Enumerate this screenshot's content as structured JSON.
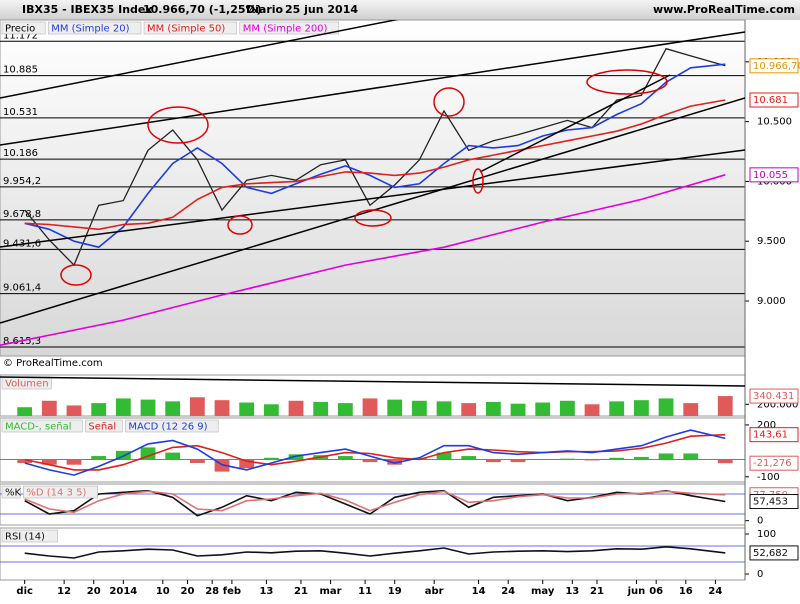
{
  "chart_data": [
    {
      "type": "line",
      "title": "IBX35 - IBEX35 Index",
      "subtitle": "10.966,70 (-1,25%)",
      "period": "Diario",
      "date": "25 jun 2014",
      "source": "www.ProRealTime.com",
      "copyright": "© ProRealTime.com",
      "x": [
        0,
        5,
        10,
        15,
        20,
        25,
        30,
        35,
        40,
        45,
        50,
        55,
        60,
        65,
        70,
        75,
        80,
        85,
        90,
        95,
        100,
        105,
        110,
        115,
        120,
        125,
        130,
        135,
        142
      ],
      "xlim": [
        -5,
        146
      ],
      "xticks": [
        {
          "value": 0,
          "label": "dic"
        },
        {
          "value": 8,
          "label": "12"
        },
        {
          "value": 14,
          "label": "20"
        },
        {
          "value": 20,
          "label": "2014"
        },
        {
          "value": 28,
          "label": "10"
        },
        {
          "value": 33,
          "label": "20"
        },
        {
          "value": 38,
          "label": "28"
        },
        {
          "value": 42,
          "label": "feb"
        },
        {
          "value": 49,
          "label": "13"
        },
        {
          "value": 56,
          "label": "21"
        },
        {
          "value": 62,
          "label": "mar"
        },
        {
          "value": 69,
          "label": "11"
        },
        {
          "value": 75,
          "label": "19"
        },
        {
          "value": 83,
          "label": "abr"
        },
        {
          "value": 92,
          "label": "14"
        },
        {
          "value": 98,
          "label": "24"
        },
        {
          "value": 105,
          "label": "may"
        },
        {
          "value": 111,
          "label": "13"
        },
        {
          "value": 116,
          "label": "21"
        },
        {
          "value": 124,
          "label": "jun"
        },
        {
          "value": 128,
          "label": "06"
        },
        {
          "value": 134,
          "label": "16"
        },
        {
          "value": 140,
          "label": "24"
        }
      ],
      "ylim": [
        8540,
        11350
      ],
      "yticks": [
        {
          "value": 9000,
          "label": "9.000"
        },
        {
          "value": 9500,
          "label": "9.500"
        },
        {
          "value": 10000,
          "label": "10.000"
        },
        {
          "value": 10500,
          "label": "10.500"
        },
        {
          "value": 11000,
          "label": "11.000"
        }
      ],
      "level_lines": [
        {
          "value": 11172,
          "label": "11.172"
        },
        {
          "value": 10885,
          "label": "10.885"
        },
        {
          "value": 10531,
          "label": "10.531"
        },
        {
          "value": 10186,
          "label": "10.186"
        },
        {
          "value": 9954.2,
          "label": "9.954,2"
        },
        {
          "value": 9678.8,
          "label": "9.678,8"
        },
        {
          "value": 9431.6,
          "label": "9.431,6"
        },
        {
          "value": 9061.4,
          "label": "9.061,4"
        },
        {
          "value": 8615.3,
          "label": "8.615,3"
        }
      ],
      "series": [
        {
          "name": "Precio",
          "color": "#222222",
          "style": "line",
          "values": [
            9760,
            9510,
            9300,
            9800,
            9840,
            10260,
            10430,
            10180,
            9760,
            10010,
            10050,
            10010,
            10140,
            10180,
            9800,
            9970,
            10180,
            10590,
            10260,
            10340,
            10390,
            10450,
            10510,
            10450,
            10680,
            10720,
            11110,
            11050,
            10966.7
          ]
        },
        {
          "name": "MM (Simple 20)",
          "color": "#1e3de0",
          "style": "line",
          "values": [
            9650,
            9600,
            9500,
            9450,
            9620,
            9900,
            10150,
            10280,
            10150,
            9950,
            9900,
            9980,
            10060,
            10130,
            10050,
            9950,
            9980,
            10150,
            10300,
            10280,
            10300,
            10380,
            10430,
            10450,
            10560,
            10650,
            10830,
            10950,
            10980
          ]
        },
        {
          "name": "MM (Simple 50)",
          "color": "#e0201b",
          "style": "line",
          "values": [
            9650,
            9640,
            9620,
            9600,
            9640,
            9650,
            9700,
            9850,
            9950,
            9980,
            9990,
            10000,
            10040,
            10080,
            10070,
            10050,
            10070,
            10120,
            10180,
            10220,
            10260,
            10300,
            10340,
            10380,
            10420,
            10480,
            10560,
            10630,
            10681
          ]
        },
        {
          "name": "MM (Simple 200)",
          "color": "#e000e0",
          "style": "line",
          "x": [
            -5,
            20,
            40,
            65,
            85,
            105,
            125,
            142
          ],
          "values": [
            8630,
            8840,
            9050,
            9300,
            9450,
            9660,
            9850,
            10055
          ]
        }
      ],
      "markers": [
        {
          "value": 10966.7,
          "label": "10.966,70",
          "color": "#e69500"
        },
        {
          "value": 10681,
          "label": "10.681",
          "color": "#e0201b"
        },
        {
          "value": 10055,
          "label": "10.055",
          "color": "#c000c0"
        }
      ]
    },
    {
      "type": "bar",
      "ylim": [
        0,
        700000
      ],
      "yticks": [
        {
          "value": 200000,
          "label": "200.000"
        }
      ],
      "series": [
        {
          "name": "Volumen",
          "color": "#e05a5a",
          "style": "bar",
          "values": [
            150000,
            260000,
            180000,
            220000,
            300000,
            280000,
            250000,
            320000,
            270000,
            230000,
            200000,
            260000,
            240000,
            220000,
            300000,
            280000,
            260000,
            250000,
            220000,
            240000,
            210000,
            230000,
            260000,
            200000,
            250000,
            270000,
            300000,
            220000,
            340431
          ],
          "colors": [
            "#33bb33",
            "#e05a5a",
            "#e05a5a",
            "#33bb33",
            "#33bb33",
            "#33bb33",
            "#33bb33",
            "#e05a5a",
            "#e05a5a",
            "#33bb33",
            "#33bb33",
            "#e05a5a",
            "#33bb33",
            "#33bb33",
            "#e05a5a",
            "#33bb33",
            "#33bb33",
            "#33bb33",
            "#e05a5a",
            "#33bb33",
            "#33bb33",
            "#33bb33",
            "#33bb33",
            "#e05a5a",
            "#33bb33",
            "#33bb33",
            "#33bb33",
            "#e05a5a",
            "#e05a5a"
          ]
        }
      ],
      "markers": [
        {
          "value": 340431,
          "label": "340.431",
          "color": "#e05a5a"
        }
      ]
    },
    {
      "type": "line",
      "ylim": [
        -130,
        240
      ],
      "yticks": [
        -100,
        200
      ],
      "level_lines": [
        {
          "value": 0
        }
      ],
      "series": [
        {
          "name": "MACD-, señal",
          "color": "#33bb33",
          "negative_color": "#e05a5a",
          "style": "bar",
          "values": [
            -20,
            -30,
            -30,
            20,
            50,
            70,
            40,
            -20,
            -70,
            -50,
            10,
            30,
            25,
            20,
            -15,
            -30,
            10,
            40,
            20,
            -15,
            -15,
            0,
            5,
            -5,
            10,
            15,
            35,
            35,
            -21.276
          ]
        },
        {
          "name": "Señal",
          "color": "#e0201b",
          "style": "line",
          "values": [
            0,
            -30,
            -60,
            -60,
            -30,
            20,
            70,
            80,
            40,
            -10,
            -30,
            -10,
            15,
            40,
            35,
            10,
            0,
            40,
            60,
            55,
            45,
            40,
            45,
            45,
            50,
            65,
            95,
            135,
            143.61
          ]
        },
        {
          "name": "MACD (12 26 9)",
          "color": "#1e3de0",
          "style": "line",
          "values": [
            -20,
            -60,
            -90,
            -40,
            20,
            90,
            110,
            60,
            -30,
            -60,
            -20,
            20,
            40,
            60,
            20,
            -20,
            10,
            80,
            80,
            40,
            30,
            40,
            50,
            40,
            60,
            80,
            130,
            170,
            122.3
          ]
        }
      ],
      "markers": [
        {
          "value": 143.61,
          "label": "143,61",
          "color": "#e0201b"
        },
        {
          "value": -21.276,
          "label": "-21,276",
          "color": "#e05a5a"
        }
      ]
    },
    {
      "type": "line",
      "ylim": [
        -13,
        110
      ],
      "yticks": [
        0
      ],
      "level_lines": [
        {
          "value": 20
        },
        {
          "value": 80
        }
      ],
      "series": [
        {
          "name": "%K",
          "color": "#111111",
          "style": "line",
          "values": [
            60,
            20,
            30,
            80,
            85,
            90,
            70,
            15,
            40,
            75,
            60,
            85,
            80,
            50,
            20,
            70,
            85,
            90,
            40,
            70,
            75,
            80,
            60,
            70,
            85,
            80,
            90,
            75,
            57.453
          ]
        },
        {
          "name": "%D (14 3 5)",
          "color": "#e07070",
          "style": "line",
          "values": [
            65,
            35,
            25,
            60,
            80,
            88,
            80,
            35,
            30,
            60,
            65,
            75,
            82,
            62,
            30,
            55,
            78,
            88,
            55,
            60,
            72,
            78,
            68,
            68,
            80,
            82,
            88,
            82,
            77.75
          ]
        }
      ],
      "markers": [
        {
          "value": 77.75,
          "label": "77,750",
          "color": "#e05a5a"
        },
        {
          "value": 57.453,
          "label": "57,453",
          "color": "#111111"
        }
      ]
    },
    {
      "type": "line",
      "ylim": [
        -15,
        115
      ],
      "yticks": [
        0,
        100
      ],
      "level_lines": [
        {
          "value": 30
        },
        {
          "value": 70
        }
      ],
      "series": [
        {
          "name": "RSI (14)",
          "color": "#111111",
          "style": "line",
          "values": [
            52,
            45,
            40,
            55,
            58,
            62,
            60,
            45,
            48,
            55,
            53,
            57,
            58,
            52,
            45,
            52,
            58,
            65,
            50,
            55,
            57,
            58,
            56,
            58,
            63,
            62,
            68,
            63,
            52.682
          ]
        }
      ],
      "markers": [
        {
          "value": 52.682,
          "label": "52,682",
          "color": "#111111"
        }
      ]
    }
  ]
}
